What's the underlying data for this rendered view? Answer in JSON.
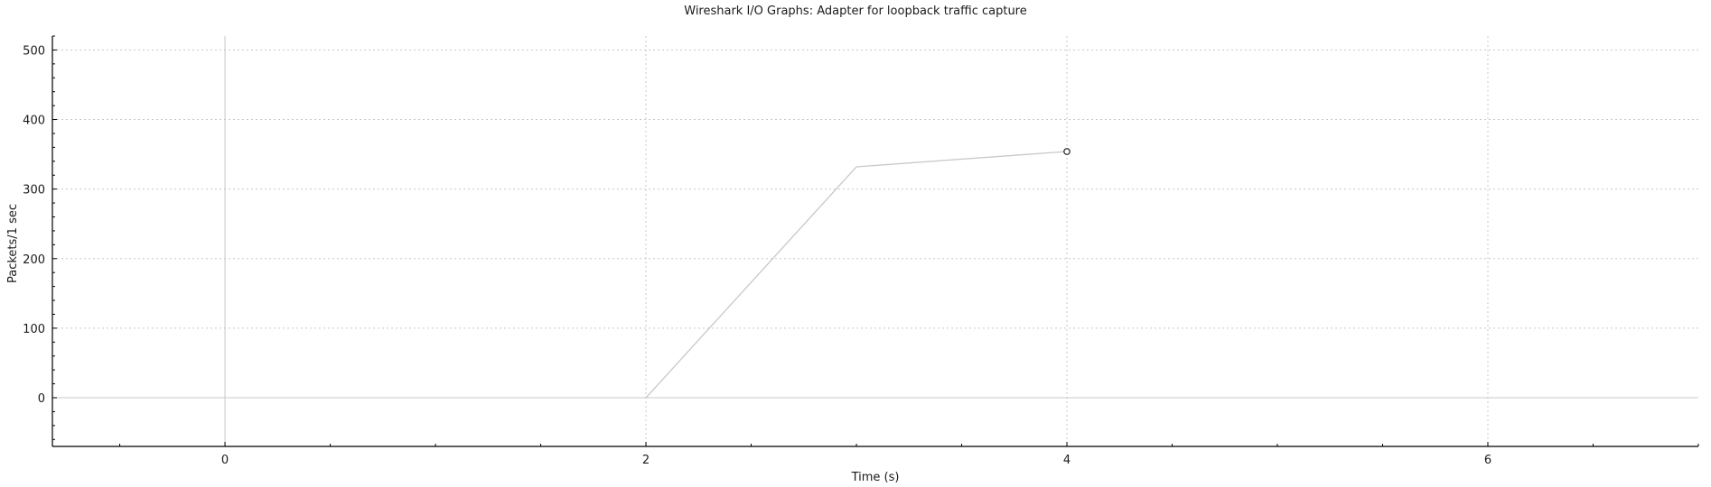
{
  "chart_data": {
    "type": "line",
    "title": "Wireshark I/O Graphs: Adapter for loopback traffic capture",
    "xlabel": "Time (s)",
    "ylabel": "Packets/1 sec",
    "xlim": [
      -0.82,
      7.0
    ],
    "ylim": [
      -70,
      520
    ],
    "x_ticks": [
      0,
      2,
      4,
      6
    ],
    "y_ticks": [
      0,
      100,
      200,
      300,
      400,
      500
    ],
    "grid": true,
    "series": [
      {
        "x": [
          2,
          3,
          4
        ],
        "y": [
          0,
          332,
          354
        ],
        "color": "#c8c8c8",
        "marker_last": true
      }
    ],
    "zero_lines": true
  }
}
